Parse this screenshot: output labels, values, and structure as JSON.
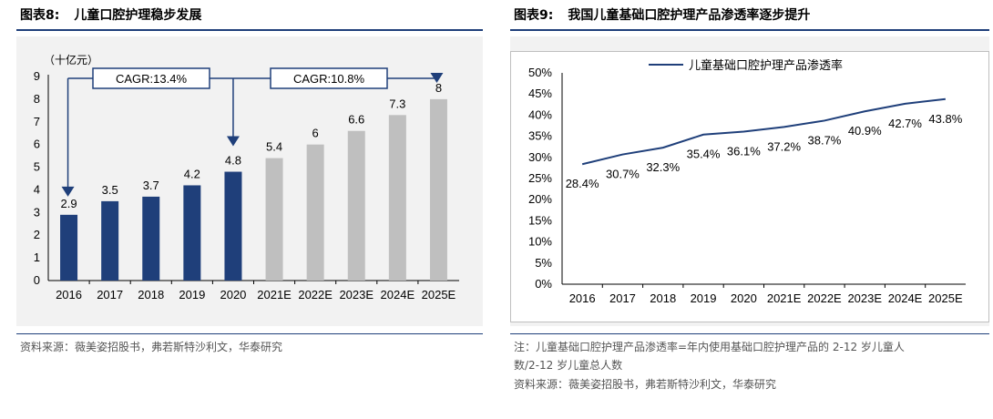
{
  "left": {
    "fig_number": "图表8:",
    "fig_title": "儿童口腔护理稳步发展",
    "source": "资料来源：薇美姿招股书，弗若斯特沙利文，华泰研究"
  },
  "right": {
    "fig_number": "图表9:",
    "fig_title": "我国儿童基础口腔护理产品渗透率逐步提升",
    "note_line1": "注：儿童基础口腔护理产品渗透率=年内使用基础口腔护理产品的 2-12 岁儿童人",
    "note_line2": "数/2-12 岁儿童总人数",
    "source": "资料来源：薇美姿招股书，弗若斯特沙利文，华泰研究"
  },
  "chart_data": [
    {
      "type": "bar",
      "title": "",
      "unit_label": "（十亿元）",
      "categories": [
        "2016",
        "2017",
        "2018",
        "2019",
        "2020",
        "2021E",
        "2022E",
        "2023E",
        "2024E",
        "2025E"
      ],
      "values": [
        2.9,
        3.5,
        3.7,
        4.2,
        4.8,
        5.4,
        6,
        6.6,
        7.3,
        8
      ],
      "value_labels": [
        "2.9",
        "3.5",
        "3.7",
        "4.2",
        "4.8",
        "5.4",
        "6",
        "6.6",
        "7.3",
        "8"
      ],
      "ylim": [
        0,
        9
      ],
      "yticks": [
        "0",
        "1",
        "2",
        "3",
        "4",
        "5",
        "6",
        "7",
        "8",
        "9"
      ],
      "colors": {
        "actual": "#1f3f7a",
        "forecast": "#bfbfbf"
      },
      "annotations": [
        {
          "text": "CAGR:13.4%",
          "from": "2016",
          "to": "2020"
        },
        {
          "text": "CAGR:10.8%",
          "from": "2020",
          "to": "2025E"
        }
      ]
    },
    {
      "type": "line",
      "title": "",
      "categories": [
        "2016",
        "2017",
        "2018",
        "2019",
        "2020",
        "2021E",
        "2022E",
        "2023E",
        "2024E",
        "2025E"
      ],
      "series": [
        {
          "name": "儿童基础口腔护理产品渗透率",
          "values": [
            28.4,
            30.7,
            32.3,
            35.4,
            36.1,
            37.2,
            38.7,
            40.9,
            42.7,
            43.8
          ],
          "labels": [
            "28.4%",
            "30.7%",
            "32.3%",
            "35.4%",
            "36.1%",
            "37.2%",
            "38.7%",
            "40.9%",
            "42.7%",
            "43.8%"
          ]
        }
      ],
      "ylim": [
        0,
        50
      ],
      "yticks": [
        "0%",
        "5%",
        "10%",
        "15%",
        "20%",
        "25%",
        "30%",
        "35%",
        "40%",
        "45%",
        "50%"
      ],
      "color": "#1f3f7a",
      "legend": "top"
    }
  ]
}
